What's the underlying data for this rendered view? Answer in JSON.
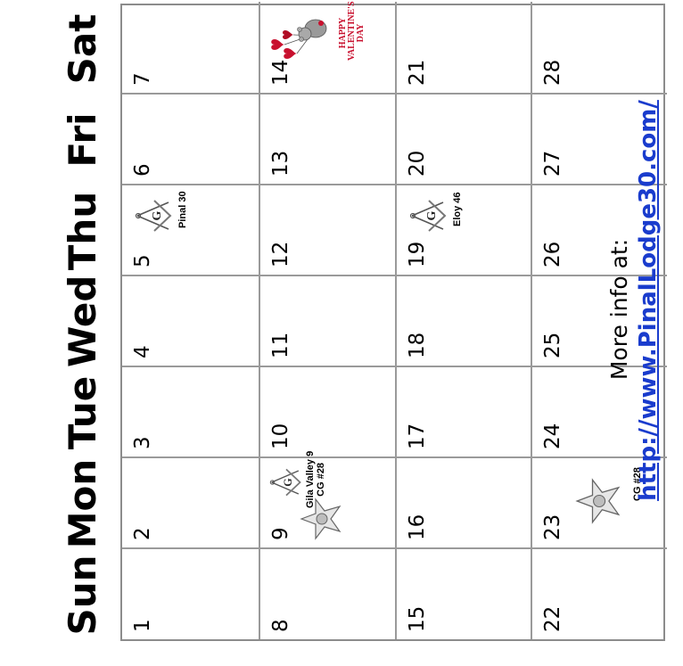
{
  "day_headers": [
    "Sun",
    "Mon",
    "Tue",
    "Wed",
    "Thu",
    "Fri",
    "Sat"
  ],
  "weeks": [
    [
      "1",
      "2",
      "3",
      "4",
      "5",
      "6",
      "7"
    ],
    [
      "8",
      "9",
      "10",
      "11",
      "12",
      "13",
      "14"
    ],
    [
      "15",
      "16",
      "17",
      "18",
      "19",
      "20",
      "21"
    ],
    [
      "22",
      "23",
      "24",
      "25",
      "26",
      "27",
      "28"
    ]
  ],
  "events": {
    "feb5": {
      "label": "Pinal 30",
      "icon": "square-compass-icon"
    },
    "feb9": {
      "line1": "Gila Valley 9",
      "line2": "CG #28",
      "icons": [
        "square-compass-icon",
        "eastern-star-icon"
      ]
    },
    "feb19": {
      "label": "Eloy 46",
      "icon": "square-compass-icon"
    },
    "feb23": {
      "label": "CG #28",
      "icon": "eastern-star-icon"
    },
    "feb14": {
      "image_text": [
        "HAPPY",
        "VALENTINE'S",
        "DAY"
      ],
      "icon": "valentine-bear-balloons-icon"
    }
  },
  "footer": {
    "more_info": "More info at:",
    "url": "http://www.PinalLodge30.com/"
  },
  "colors": {
    "link": "#1a3ccd",
    "grid": "#9a9a9a",
    "valentine_red": "#c8102e"
  }
}
